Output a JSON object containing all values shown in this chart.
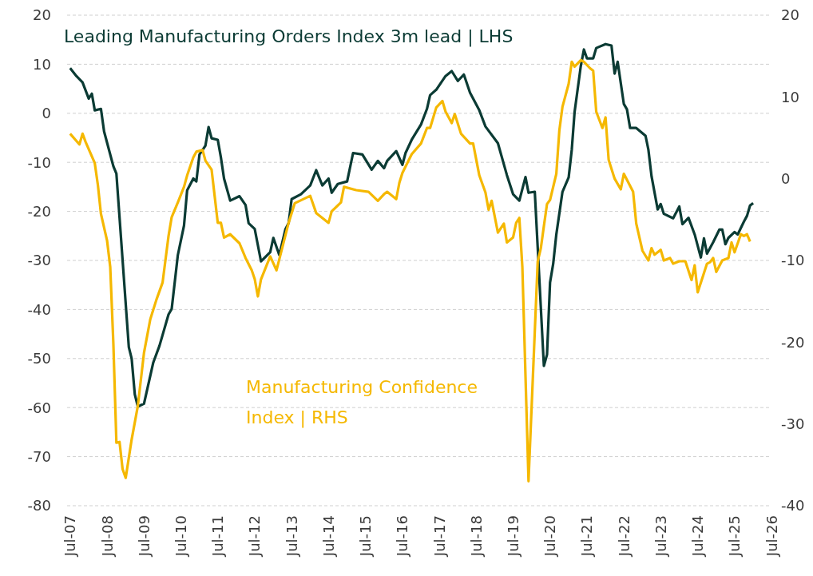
{
  "chart_data": {
    "type": "line",
    "legend": false,
    "grid": "y",
    "line_style": "solid",
    "marker": "none",
    "xlim": [
      "2007-06",
      "2026-07"
    ],
    "xticks": [
      {
        "value": "2007-07",
        "label": "Jul-07"
      },
      {
        "value": "2008-07",
        "label": "Jul-08"
      },
      {
        "value": "2009-07",
        "label": "Jul-09"
      },
      {
        "value": "2010-07",
        "label": "Jul-10"
      },
      {
        "value": "2011-07",
        "label": "Jul-11"
      },
      {
        "value": "2012-07",
        "label": "Jul-12"
      },
      {
        "value": "2013-07",
        "label": "Jul-13"
      },
      {
        "value": "2014-07",
        "label": "Jul-14"
      },
      {
        "value": "2015-07",
        "label": "Jul-15"
      },
      {
        "value": "2016-07",
        "label": "Jul-16"
      },
      {
        "value": "2017-07",
        "label": "Jul-17"
      },
      {
        "value": "2018-07",
        "label": "Jul-18"
      },
      {
        "value": "2019-07",
        "label": "Jul-19"
      },
      {
        "value": "2020-07",
        "label": "Jul-20"
      },
      {
        "value": "2021-07",
        "label": "Jul-21"
      },
      {
        "value": "2022-07",
        "label": "Jul-22"
      },
      {
        "value": "2023-07",
        "label": "Jul-23"
      },
      {
        "value": "2024-07",
        "label": "Jul-24"
      },
      {
        "value": "2025-07",
        "label": "Jul-25"
      },
      {
        "value": "2026-07",
        "label": "Jul-26"
      }
    ],
    "ylim": [
      -80,
      20
    ],
    "yticks": [
      -80,
      -70,
      -60,
      -50,
      -40,
      -30,
      -20,
      -10,
      0,
      10,
      20
    ],
    "y2lim": [
      -40,
      20
    ],
    "y2ticks": [
      -40,
      -30,
      -20,
      -10,
      0,
      10,
      20
    ],
    "series": [
      {
        "name": "Leading Manufacturing Orders Index 3m lead | LHS",
        "color": "#0b3b34",
        "x": [
          "2007-07",
          "2007-09",
          "2007-11",
          "2008-01",
          "2008-02",
          "2008-03",
          "2008-05",
          "2008-06",
          "2008-09",
          "2008-10",
          "2009-02",
          "2009-03",
          "2009-04",
          "2009-05",
          "2009-07",
          "2009-10",
          "2009-12",
          "2010-03",
          "2010-04",
          "2010-06",
          "2010-08",
          "2010-09",
          "2010-11",
          "2010-12",
          "2011-01",
          "2011-03",
          "2011-04",
          "2011-05",
          "2011-07",
          "2011-08",
          "2011-09",
          "2011-11",
          "2012-02",
          "2012-04",
          "2012-05",
          "2012-07",
          "2012-09",
          "2012-12",
          "2013-01",
          "2013-03",
          "2013-05",
          "2013-06",
          "2013-07",
          "2013-10",
          "2014-01",
          "2014-03",
          "2014-05",
          "2014-07",
          "2014-08",
          "2014-10",
          "2015-01",
          "2015-03",
          "2015-06",
          "2015-09",
          "2015-11",
          "2016-01",
          "2016-02",
          "2016-05",
          "2016-07",
          "2016-08",
          "2016-10",
          "2017-01",
          "2017-03",
          "2017-04",
          "2017-06",
          "2017-09",
          "2017-11",
          "2018-01",
          "2018-03",
          "2018-05",
          "2018-08",
          "2018-10",
          "2019-02",
          "2019-05",
          "2019-07",
          "2019-09",
          "2019-11",
          "2019-12",
          "2020-02",
          "2020-05",
          "2020-06",
          "2020-07",
          "2020-08",
          "2020-09",
          "2020-11",
          "2021-01",
          "2021-02",
          "2021-03",
          "2021-05",
          "2021-06",
          "2021-07",
          "2021-09",
          "2021-10",
          "2022-01",
          "2022-03",
          "2022-04",
          "2022-05",
          "2022-07",
          "2022-08",
          "2022-09",
          "2022-11",
          "2023-02",
          "2023-03",
          "2023-04",
          "2023-06",
          "2023-07",
          "2023-08",
          "2023-11",
          "2024-01",
          "2024-02",
          "2024-04",
          "2024-06",
          "2024-08",
          "2024-09",
          "2024-10",
          "2024-12",
          "2025-02",
          "2025-03",
          "2025-04",
          "2025-05",
          "2025-07",
          "2025-08",
          "2025-10",
          "2025-11",
          "2025-12",
          "2026-01"
        ],
        "values": [
          9.2,
          7.6,
          6.3,
          3.0,
          4.0,
          0.6,
          0.9,
          -3.7,
          -10.8,
          -12.3,
          -47.7,
          -50,
          -57.3,
          -59.8,
          -59.2,
          -50.8,
          -47.4,
          -41,
          -39.9,
          -28.9,
          -22.9,
          -15.7,
          -13.3,
          -13.9,
          -8.4,
          -6.6,
          -2.8,
          -5.1,
          -5.4,
          -9.0,
          -13.3,
          -17.8,
          -16.9,
          -18.7,
          -22.4,
          -23.6,
          -30.2,
          -28.3,
          -25.4,
          -28.9,
          -23.6,
          -22.4,
          -17.5,
          -16.5,
          -14.7,
          -11.6,
          -14.7,
          -13.3,
          -16.2,
          -14.4,
          -13.9,
          -8.1,
          -8.4,
          -11.5,
          -9.7,
          -11.2,
          -9.7,
          -7.7,
          -10.5,
          -8.1,
          -5.4,
          -2.3,
          0.9,
          3.7,
          4.8,
          7.6,
          8.6,
          6.6,
          7.9,
          4.2,
          0.6,
          -2.7,
          -6.1,
          -12.6,
          -16.5,
          -17.8,
          -13.0,
          -16.2,
          -16,
          -51.5,
          -49.2,
          -34.5,
          -30.7,
          -24.7,
          -16,
          -13.1,
          -7.4,
          0.3,
          9.6,
          13.0,
          11.2,
          11.2,
          13.3,
          14.1,
          13.8,
          8.1,
          10.5,
          1.9,
          0.8,
          -3.0,
          -3.0,
          -4.6,
          -7.4,
          -12.8,
          -19.6,
          -18.5,
          -20.5,
          -21.4,
          -19,
          -22.6,
          -21.3,
          -24.7,
          -29.4,
          -25.5,
          -28.6,
          -26.3,
          -23.7,
          -23.7,
          -26.7,
          -25.4,
          -24.2,
          -24.7,
          -22.1,
          -20.9,
          -18.8,
          -18.3
        ]
      },
      {
        "name": "Manufacturing Confidence Index | RHS",
        "color": "#f5b800",
        "axis": "y2",
        "x": [
          "2007-07",
          "2007-10",
          "2007-11",
          "2007-12",
          "2008-03",
          "2008-04",
          "2008-05",
          "2008-07",
          "2008-08",
          "2008-09",
          "2008-10",
          "2008-11",
          "2008-12",
          "2009-01",
          "2009-03",
          "2009-05",
          "2009-07",
          "2009-09",
          "2009-11",
          "2010-01",
          "2010-03",
          "2010-04",
          "2010-06",
          "2010-08",
          "2010-09",
          "2010-11",
          "2010-12",
          "2011-02",
          "2011-03",
          "2011-05",
          "2011-07",
          "2011-08",
          "2011-09",
          "2011-11",
          "2012-02",
          "2012-04",
          "2012-06",
          "2012-07",
          "2012-08",
          "2012-09",
          "2012-12",
          "2013-02",
          "2013-06",
          "2013-08",
          "2014-01",
          "2014-03",
          "2014-07",
          "2014-08",
          "2014-11",
          "2014-12",
          "2015-04",
          "2015-08",
          "2015-11",
          "2016-01",
          "2016-02",
          "2016-05",
          "2016-06",
          "2016-07",
          "2016-10",
          "2017-01",
          "2017-03",
          "2017-04",
          "2017-06",
          "2017-08",
          "2017-09",
          "2017-11",
          "2017-12",
          "2018-02",
          "2018-05",
          "2018-06",
          "2018-08",
          "2018-10",
          "2018-11",
          "2018-12",
          "2019-02",
          "2019-04",
          "2019-05",
          "2019-07",
          "2019-08",
          "2019-09",
          "2019-10",
          "2019-12",
          "2020-03",
          "2020-04",
          "2020-05",
          "2020-06",
          "2020-07",
          "2020-09",
          "2020-10",
          "2020-11",
          "2021-01",
          "2021-02",
          "2021-03",
          "2021-05",
          "2021-06",
          "2021-08",
          "2021-09",
          "2021-10",
          "2021-12",
          "2022-01",
          "2022-02",
          "2022-04",
          "2022-06",
          "2022-07",
          "2022-10",
          "2022-11",
          "2023-01",
          "2023-03",
          "2023-04",
          "2023-05",
          "2023-07",
          "2023-08",
          "2023-10",
          "2023-11",
          "2024-01",
          "2024-03",
          "2024-05",
          "2024-06",
          "2024-07",
          "2024-10",
          "2024-11",
          "2024-12",
          "2025-01",
          "2025-03",
          "2025-05",
          "2025-06",
          "2025-07",
          "2025-09",
          "2025-10",
          "2025-11",
          "2025-12"
        ],
        "values": [
          5.5,
          4.2,
          5.5,
          4.5,
          1.9,
          -0.8,
          -4.3,
          -7.6,
          -10.8,
          -20.2,
          -32.3,
          -32.2,
          -35.5,
          -36.6,
          -31.9,
          -27.8,
          -21.3,
          -17.2,
          -14.8,
          -12.7,
          -7.0,
          -4.7,
          -2.9,
          -1.0,
          0.4,
          2.6,
          3.3,
          3.5,
          2.2,
          1.1,
          -5.4,
          -5.4,
          -7.2,
          -6.8,
          -7.9,
          -9.7,
          -11.2,
          -12.3,
          -14.4,
          -12.3,
          -9.5,
          -11.2,
          -5.4,
          -3.0,
          -2.1,
          -4.2,
          -5.4,
          -4.0,
          -2.9,
          -1.0,
          -1.4,
          -1.6,
          -2.7,
          -1.9,
          -1.6,
          -2.5,
          -0.5,
          0.7,
          3.0,
          4.3,
          6.2,
          6.2,
          8.7,
          9.5,
          8.2,
          6.8,
          7.9,
          5.5,
          4.3,
          4.3,
          0.4,
          -1.7,
          -3.8,
          -2.7,
          -6.6,
          -5.5,
          -7.8,
          -7.2,
          -5.4,
          -4.8,
          -10.8,
          -37,
          -10.1,
          -8.5,
          -5.8,
          -3.1,
          -2.6,
          0.6,
          5.9,
          8.8,
          11.6,
          14.3,
          13.7,
          14.5,
          14.3,
          13.5,
          13.2,
          8.2,
          6.2,
          7.5,
          2.3,
          0.0,
          -1.3,
          0.6,
          -1.6,
          -5.5,
          -8.8,
          -10.0,
          -8.5,
          -9.3,
          -8.7,
          -10.0,
          -9.7,
          -10.4,
          -10.1,
          -10.1,
          -12.4,
          -10.6,
          -13.9,
          -10.4,
          -10.2,
          -9.7,
          -11.4,
          -10.0,
          -9.7,
          -7.8,
          -9.0,
          -6.8,
          -7.0,
          -6.8,
          -7.7
        ]
      }
    ]
  }
}
